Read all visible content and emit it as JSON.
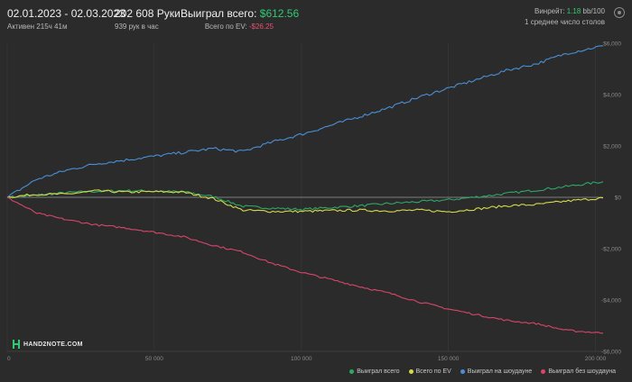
{
  "header": {
    "date_range": "02.01.2023 - 02.03.2023",
    "active": "Активен 215ч 41м",
    "hands": "202 608 Руки",
    "hands_per_hour": "939 рук в час",
    "won_total_label": "Выиграл всего:",
    "won_total_value": "$612.56",
    "ev_label": "Всего по EV:",
    "ev_value": "-$26.25",
    "winrate_label": "Винрейт:",
    "winrate_value": "1.18",
    "winrate_unit": "bb/100",
    "avg_tables": "1 среднее число столов"
  },
  "logo_text": "HAND2NOTE.COM",
  "colors": {
    "won_total": "#2fa866",
    "ev": "#d4d94a",
    "showdown": "#4a8fd6",
    "non_showdown": "#d9456a",
    "background": "#2b2b2b",
    "grid": "#3a3a3a"
  },
  "chart_data": {
    "type": "line",
    "xlim": [
      0,
      202608
    ],
    "ylim": [
      -6000,
      6000
    ],
    "x_ticks": [
      0,
      50000,
      100000,
      150000,
      200000
    ],
    "x_tick_labels": [
      "0",
      "50 000",
      "100 000",
      "150 000",
      "200 000"
    ],
    "y_ticks": [
      6000,
      4000,
      2000,
      0,
      -2000,
      -4000,
      -6000
    ],
    "y_tick_labels": [
      "$6,000",
      "$4,000",
      "$2,000",
      "$0",
      "-$2,000",
      "-$4,000",
      "-$6,000"
    ],
    "x": [
      0,
      10000,
      20000,
      30000,
      40000,
      50000,
      60000,
      70000,
      80000,
      90000,
      100000,
      110000,
      120000,
      130000,
      140000,
      150000,
      160000,
      170000,
      180000,
      190000,
      202608
    ],
    "series": [
      {
        "name": "Выиграл всего",
        "color": "#2fa866",
        "values": [
          0,
          80,
          180,
          230,
          260,
          240,
          210,
          30,
          -350,
          -420,
          -470,
          -400,
          -330,
          -240,
          -170,
          -100,
          20,
          150,
          280,
          420,
          612
        ]
      },
      {
        "name": "Всего по EV",
        "color": "#d4d94a",
        "values": [
          0,
          120,
          120,
          250,
          200,
          220,
          200,
          -50,
          -500,
          -550,
          -550,
          -520,
          -500,
          -530,
          -500,
          -560,
          -450,
          -330,
          -280,
          -150,
          -26
        ]
      },
      {
        "name": "Выиграл на шоудауне",
        "color": "#4a8fd6",
        "values": [
          0,
          700,
          1050,
          1300,
          1450,
          1600,
          1750,
          1900,
          1780,
          2150,
          2450,
          2800,
          3150,
          3500,
          3900,
          4250,
          4600,
          4950,
          5200,
          5600,
          5900
        ]
      },
      {
        "name": "Выиграл без шоудауна",
        "color": "#d9456a",
        "values": [
          0,
          -620,
          -870,
          -1070,
          -1190,
          -1360,
          -1540,
          -1870,
          -2130,
          -2570,
          -2920,
          -3200,
          -3480,
          -3740,
          -4070,
          -4350,
          -4580,
          -4800,
          -4920,
          -5180,
          -5290
        ]
      }
    ]
  }
}
